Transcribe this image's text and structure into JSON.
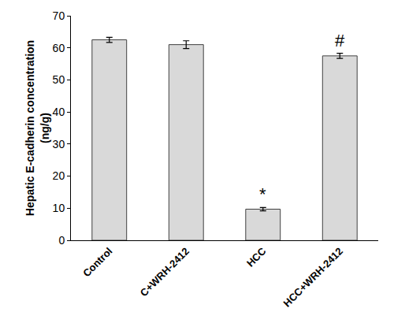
{
  "chart_data": {
    "type": "bar",
    "y_label": [
      "Hepatic E-cadherin concentration",
      "(ng/g)"
    ],
    "categories": [
      "Control",
      "C+WRH-2412",
      "HCC",
      "HCC+WRH-2412"
    ],
    "values": [
      62.5,
      61,
      9.7,
      57.5
    ],
    "errors": [
      0.8,
      1.2,
      0.5,
      0.8
    ],
    "color": "#d9d9d9",
    "ylim": [
      0,
      70
    ],
    "yticks": [
      0,
      10,
      20,
      30,
      40,
      50,
      60,
      70
    ],
    "grid": false,
    "annotations": [
      {
        "category": "HCC",
        "text": "*"
      },
      {
        "category": "HCC+WRH-2412",
        "text": "#"
      }
    ]
  }
}
